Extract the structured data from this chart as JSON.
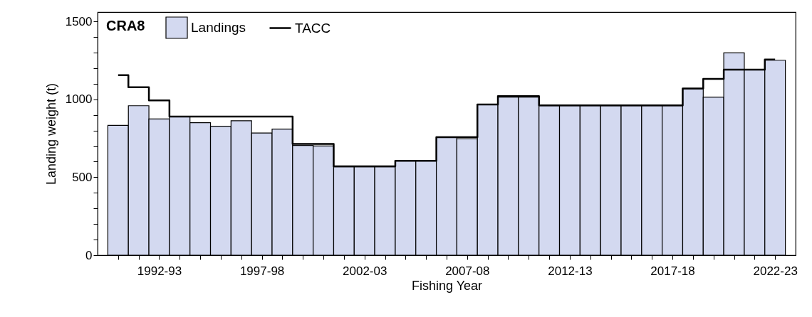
{
  "chart_data": {
    "type": "bar",
    "title": "CRA8",
    "xlabel": "Fishing Year",
    "ylabel": "Landing weight (t)",
    "categories": [
      null,
      null,
      "1992-93",
      null,
      null,
      null,
      null,
      "1997-98",
      null,
      null,
      null,
      null,
      "2002-03",
      null,
      null,
      null,
      null,
      "2007-08",
      null,
      null,
      null,
      null,
      "2012-13",
      null,
      null,
      null,
      null,
      "2017-18",
      null,
      null,
      null,
      null,
      "2022-23"
    ],
    "series": [
      {
        "name": "Landings",
        "color": "#d3d9f0",
        "values": [
          833,
          959,
          874,
          888,
          850,
          827,
          863,
          784,
          809,
          704,
          701,
          567,
          567,
          567,
          605,
          605,
          755,
          747,
          967,
          1014,
          1014,
          960,
          960,
          960,
          960,
          960,
          960,
          960,
          1068,
          1014,
          1298,
          1190,
          1251
        ]
      },
      {
        "name": "TACC",
        "type": "step",
        "color": "#000000",
        "values": [
          1155,
          1078,
          993,
          889,
          889,
          889,
          889,
          889,
          889,
          714,
          714,
          570,
          570,
          570,
          606,
          606,
          757,
          757,
          967,
          1021,
          1021,
          961,
          961,
          961,
          961,
          961,
          961,
          961,
          1070,
          1131,
          1190,
          1190,
          1256
        ]
      }
    ],
    "ylim": [
      0,
      1560
    ],
    "yticks": [
      0,
      {
        "value": 100,
        "label": null
      },
      {
        "value": 200,
        "label": null
      },
      {
        "value": 300,
        "label": null
      },
      {
        "value": 400,
        "label": null
      },
      500,
      {
        "value": 600,
        "label": null
      },
      {
        "value": 700,
        "label": null
      },
      {
        "value": 800,
        "label": null
      },
      {
        "value": 900,
        "label": null
      },
      1000,
      {
        "value": 1100,
        "label": null
      },
      {
        "value": 1200,
        "label": null
      },
      {
        "value": 1300,
        "label": null
      },
      {
        "value": 1400,
        "label": null
      },
      1500
    ],
    "legend": "top left",
    "grid": false
  }
}
